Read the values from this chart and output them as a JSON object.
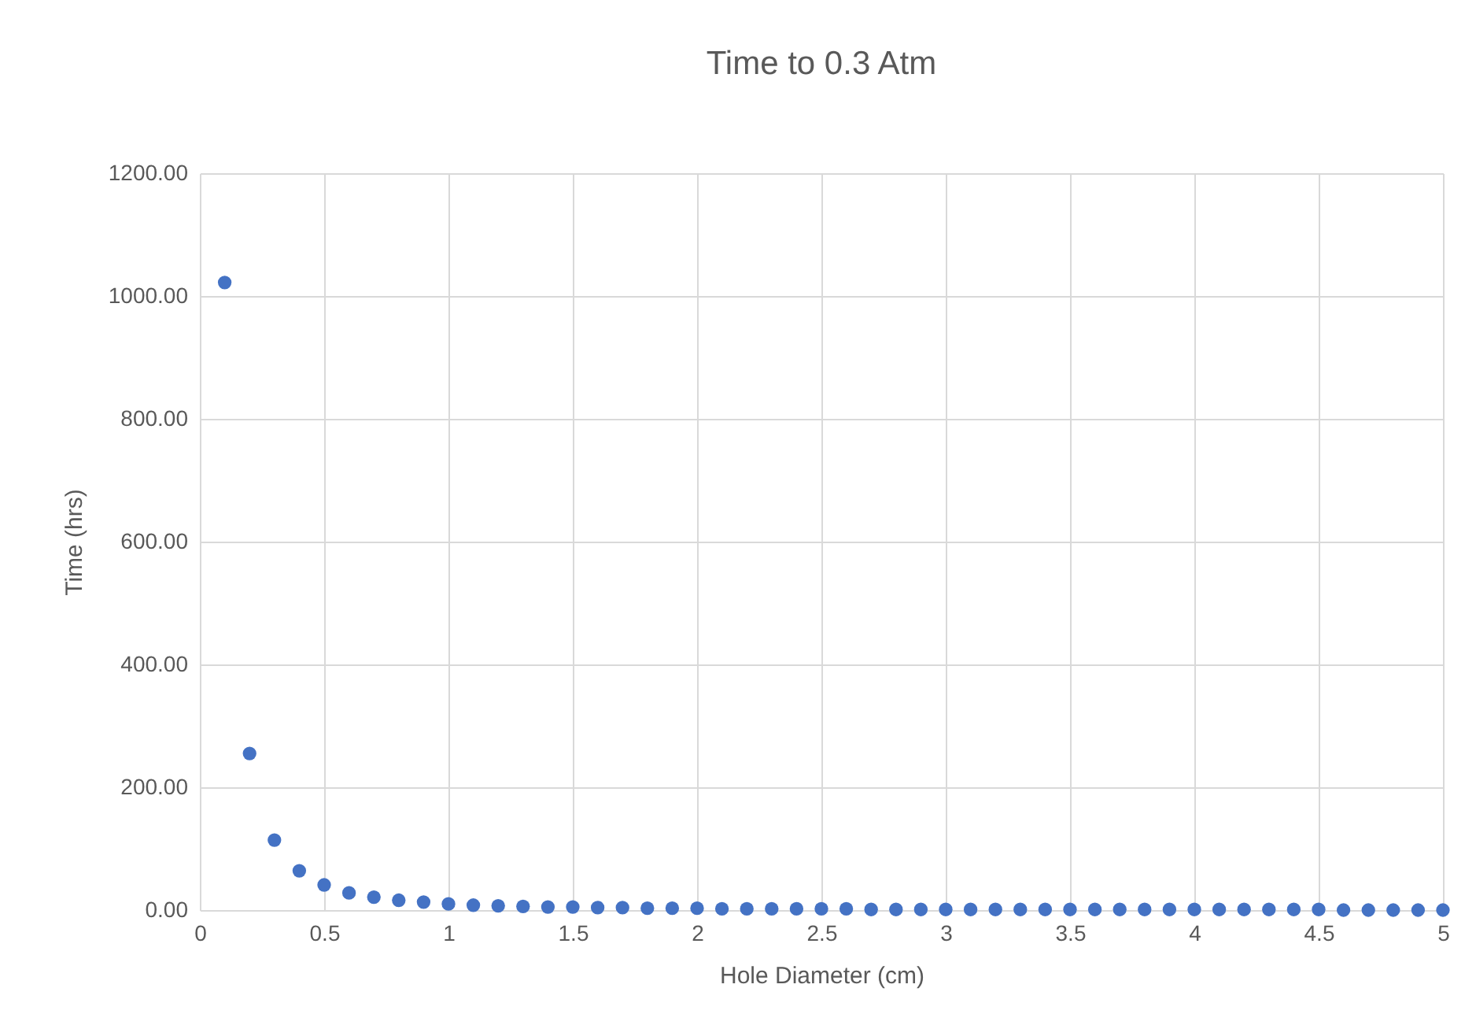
{
  "chart_data": {
    "type": "scatter",
    "title": "Time to 0.3 Atm",
    "xlabel": "Hole Diameter (cm)",
    "ylabel": "Time (hrs)",
    "x": [
      0.1,
      0.2,
      0.3,
      0.4,
      0.5,
      0.6,
      0.7,
      0.8,
      0.9,
      1.0,
      1.1,
      1.2,
      1.3,
      1.4,
      1.5,
      1.6,
      1.7,
      1.8,
      1.9,
      2.0,
      2.1,
      2.2,
      2.3,
      2.4,
      2.5,
      2.6,
      2.7,
      2.8,
      2.9,
      3.0,
      3.1,
      3.2,
      3.3,
      3.4,
      3.5,
      3.6,
      3.7,
      3.8,
      3.9,
      4.0,
      4.1,
      4.2,
      4.3,
      4.4,
      4.5,
      4.6,
      4.7,
      4.8,
      4.9,
      5.0
    ],
    "series": [
      {
        "color": "#4472c4",
        "values": [
          1022,
          255,
          114,
          64,
          41,
          28,
          21,
          16,
          13,
          10,
          8,
          7,
          6,
          5,
          5,
          4,
          4,
          3,
          3,
          3,
          2,
          2,
          2,
          2,
          2,
          2,
          1,
          1,
          1,
          1,
          1,
          1,
          1,
          1,
          1,
          1,
          1,
          1,
          1,
          1,
          1,
          1,
          1,
          1,
          1,
          0,
          0,
          0,
          0,
          0
        ]
      }
    ],
    "xlim": [
      0,
      5
    ],
    "xticks": [
      0,
      0.5,
      1,
      1.5,
      2,
      2.5,
      3,
      3.5,
      4,
      4.5,
      5
    ],
    "ylim": [
      0,
      1200
    ],
    "yticks": [
      {
        "value": 0,
        "label": "0.00"
      },
      {
        "value": 200,
        "label": "200.00"
      },
      {
        "value": 400,
        "label": "400.00"
      },
      {
        "value": 600,
        "label": "600.00"
      },
      {
        "value": 800,
        "label": "800.00"
      },
      {
        "value": 1000,
        "label": "1000.00"
      },
      {
        "value": 1200,
        "label": "1200.00"
      }
    ],
    "grid": true,
    "marker": "circle"
  }
}
